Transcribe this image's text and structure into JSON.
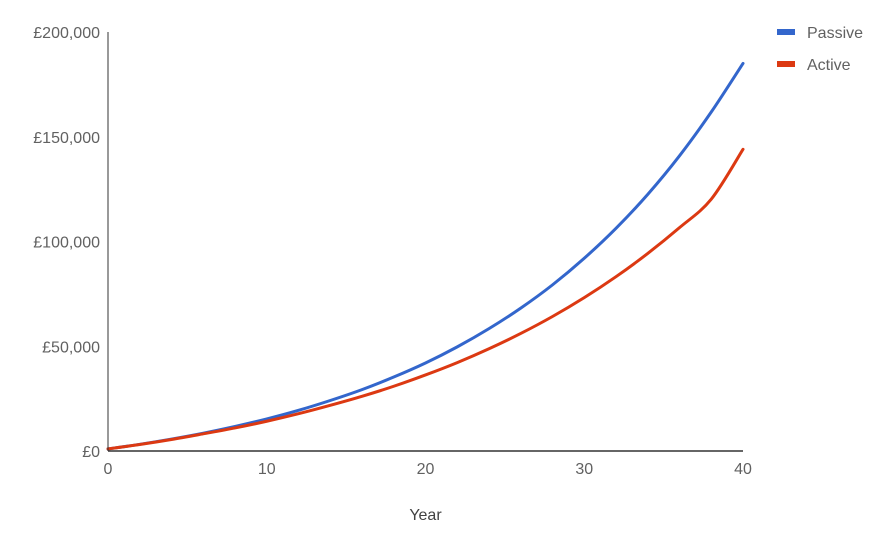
{
  "chart_data": {
    "type": "line",
    "title": "",
    "xlabel": "Year",
    "ylabel": "",
    "x": [
      0,
      2,
      4,
      6,
      8,
      10,
      12,
      14,
      16,
      18,
      20,
      22,
      24,
      26,
      28,
      30,
      32,
      34,
      36,
      38,
      40
    ],
    "xlim": [
      0,
      40
    ],
    "ylim": [
      0,
      200000
    ],
    "x_ticks": [
      0,
      10,
      20,
      30,
      40
    ],
    "x_tick_labels": [
      "0",
      "10",
      "20",
      "30",
      "40"
    ],
    "y_ticks": [
      0,
      50000,
      100000,
      150000,
      200000
    ],
    "y_tick_labels": [
      "£0",
      "£50,000",
      "£100,000",
      "£150,000",
      "£200,000"
    ],
    "grid": false,
    "legend_position": "top-right",
    "series": [
      {
        "name": "Passive",
        "color": "#3366CC",
        "values": [
          1000,
          3200,
          5700,
          8500,
          11700,
          15300,
          19400,
          24100,
          29300,
          35300,
          42000,
          49700,
          58400,
          68200,
          79300,
          92000,
          106300,
          122500,
          140900,
          161800,
          185000
        ]
      },
      {
        "name": "Active",
        "color": "#DC3912",
        "values": [
          1000,
          3100,
          5500,
          8200,
          11000,
          14200,
          17800,
          21800,
          26100,
          30900,
          36300,
          42200,
          48800,
          56100,
          64200,
          73200,
          83200,
          94300,
          106600,
          120200,
          144000
        ]
      }
    ]
  }
}
